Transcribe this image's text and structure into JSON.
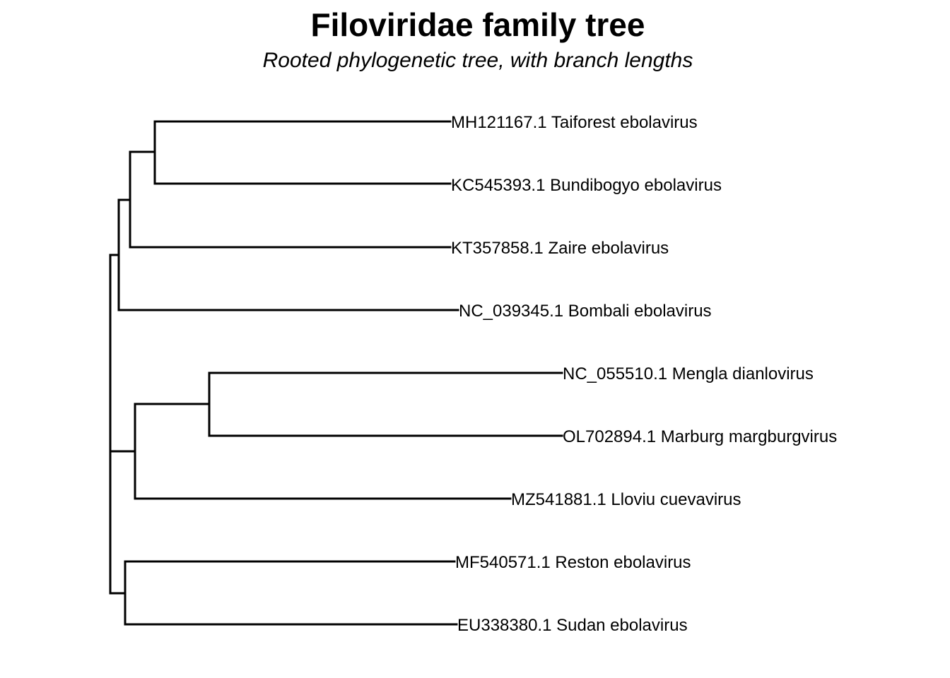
{
  "figure": {
    "title": "Filoviridae family tree",
    "subtitle": "Rooted phylogenetic tree, with branch lengths",
    "line_color": "#000000",
    "tree_type": "rooted phylogram, rectangular layout"
  },
  "tree": {
    "tips": [
      "MH121167.1 Taiforest ebolavirus",
      "KC545393.1 Bundibogyo ebolavirus",
      "KT357858.1 Zaire ebolavirus",
      "NC_039345.1 Bombali ebolavirus",
      "NC_055510.1 Mengla dianlovirus",
      "OL702894.1 Marburg margburgvirus",
      "MZ541881.1 Lloviu cuevavirus",
      "MF540571.1 Reston ebolavirus",
      "EU338380.1 Sudan ebolavirus"
    ],
    "newick_topology": "(((((Taiforest,Bundibogyo),Zaire),Bombali),((Mengla,Marburg),Lloviu)),(Reston,Sudan));"
  }
}
